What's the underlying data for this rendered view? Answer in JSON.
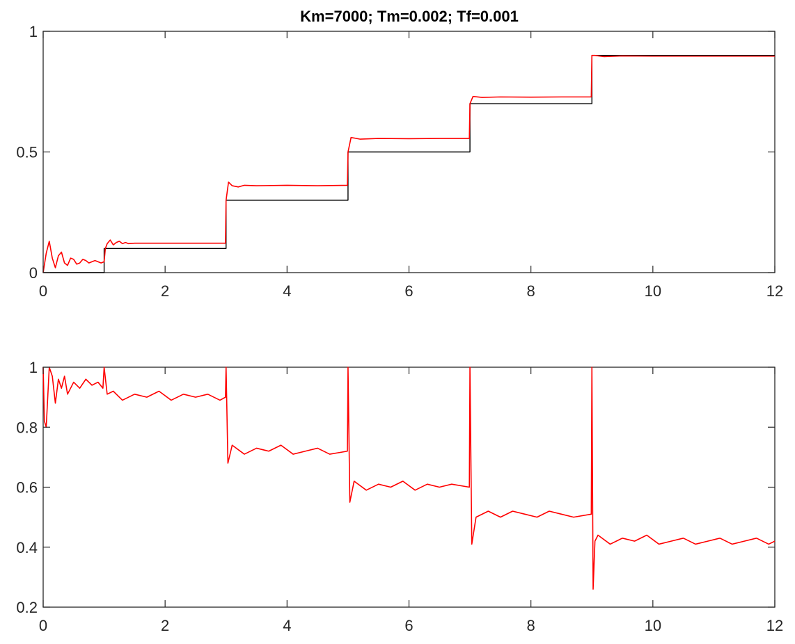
{
  "colors": {
    "reference": "#000000",
    "response": "#ff0000",
    "axes": "#262626",
    "background": "#ffffff"
  },
  "chart_data": [
    {
      "type": "line",
      "title": "Km=7000; Tm=0.002; Tf=0.001",
      "xlabel": "",
      "ylabel": "",
      "xlim": [
        0,
        12
      ],
      "ylim": [
        0,
        1
      ],
      "xticks": [
        0,
        2,
        4,
        6,
        8,
        10,
        12
      ],
      "yticks": [
        0,
        0.5,
        1
      ],
      "xtick_labels": [
        "0",
        "2",
        "4",
        "6",
        "8",
        "10",
        "12"
      ],
      "ytick_labels": [
        "0",
        "0.5",
        "1"
      ],
      "grid": false,
      "legend": false,
      "series": [
        {
          "color": "#000000",
          "step": true,
          "x": [
            0,
            1,
            1,
            3,
            3,
            5,
            5,
            7,
            7,
            9,
            9,
            12
          ],
          "y": [
            0,
            0,
            0.1,
            0.1,
            0.3,
            0.3,
            0.5,
            0.5,
            0.7,
            0.7,
            0.9,
            0.9
          ]
        },
        {
          "color": "#ff0000",
          "x": [
            0,
            0.05,
            0.1,
            0.15,
            0.2,
            0.25,
            0.3,
            0.35,
            0.4,
            0.45,
            0.5,
            0.55,
            0.6,
            0.65,
            0.7,
            0.75,
            0.8,
            0.85,
            0.9,
            0.95,
            1.0,
            1.02,
            1.05,
            1.1,
            1.15,
            1.2,
            1.25,
            1.3,
            1.35,
            1.4,
            1.5,
            2.0,
            2.5,
            2.99,
            3.0,
            3.04,
            3.1,
            3.2,
            3.3,
            3.5,
            4.0,
            4.5,
            4.99,
            5.0,
            5.05,
            5.2,
            5.5,
            6.0,
            6.5,
            6.99,
            7.0,
            7.05,
            7.2,
            7.5,
            8.0,
            8.5,
            8.99,
            9.0,
            9.05,
            9.2,
            9.5,
            10.0,
            11.0,
            12.0
          ],
          "y": [
            0,
            0.08,
            0.13,
            0.06,
            0.02,
            0.07,
            0.085,
            0.04,
            0.03,
            0.06,
            0.055,
            0.035,
            0.04,
            0.055,
            0.05,
            0.04,
            0.045,
            0.05,
            0.045,
            0.04,
            0.045,
            0.1,
            0.12,
            0.135,
            0.115,
            0.125,
            0.13,
            0.12,
            0.125,
            0.12,
            0.122,
            0.122,
            0.122,
            0.122,
            0.3,
            0.375,
            0.36,
            0.355,
            0.362,
            0.36,
            0.362,
            0.36,
            0.362,
            0.5,
            0.56,
            0.553,
            0.556,
            0.555,
            0.556,
            0.556,
            0.7,
            0.73,
            0.726,
            0.728,
            0.727,
            0.728,
            0.728,
            0.9,
            0.9,
            0.895,
            0.898,
            0.897,
            0.897,
            0.897
          ]
        }
      ]
    },
    {
      "type": "line",
      "title": "",
      "xlabel": "",
      "ylabel": "",
      "xlim": [
        0,
        12
      ],
      "ylim": [
        0.2,
        1
      ],
      "xticks": [
        0,
        2,
        4,
        6,
        8,
        10,
        12
      ],
      "yticks": [
        0.2,
        0.4,
        0.6,
        0.8,
        1
      ],
      "xtick_labels": [
        "0",
        "2",
        "4",
        "6",
        "8",
        "10",
        "12"
      ],
      "ytick_labels": [
        "0.2",
        "0.4",
        "0.6",
        "0.8",
        "1"
      ],
      "grid": false,
      "legend": false,
      "series": [
        {
          "color": "#ff0000",
          "x": [
            0,
            0.02,
            0.05,
            0.08,
            0.1,
            0.15,
            0.2,
            0.25,
            0.3,
            0.35,
            0.4,
            0.5,
            0.6,
            0.7,
            0.8,
            0.9,
            0.98,
            1.0,
            1.05,
            1.15,
            1.3,
            1.5,
            1.7,
            1.9,
            2.1,
            2.3,
            2.5,
            2.7,
            2.9,
            2.99,
            3.0,
            3.03,
            3.1,
            3.3,
            3.5,
            3.7,
            3.9,
            4.1,
            4.3,
            4.5,
            4.7,
            4.99,
            5.0,
            5.03,
            5.1,
            5.3,
            5.5,
            5.7,
            5.9,
            6.1,
            6.3,
            6.5,
            6.7,
            6.99,
            7.0,
            7.03,
            7.1,
            7.3,
            7.5,
            7.7,
            7.9,
            8.1,
            8.3,
            8.5,
            8.7,
            8.99,
            9.0,
            9.02,
            9.05,
            9.1,
            9.3,
            9.5,
            9.7,
            9.9,
            10.1,
            10.3,
            10.5,
            10.7,
            10.9,
            11.1,
            11.3,
            11.5,
            11.7,
            11.9,
            12.0
          ],
          "y": [
            1.0,
            0.82,
            0.8,
            0.92,
            1.0,
            0.97,
            0.88,
            0.96,
            0.93,
            0.97,
            0.91,
            0.95,
            0.93,
            0.96,
            0.94,
            0.95,
            0.93,
            1.0,
            0.91,
            0.92,
            0.89,
            0.91,
            0.9,
            0.92,
            0.89,
            0.91,
            0.9,
            0.91,
            0.89,
            0.9,
            1.0,
            0.68,
            0.74,
            0.71,
            0.73,
            0.72,
            0.74,
            0.71,
            0.72,
            0.73,
            0.71,
            0.72,
            1.0,
            0.55,
            0.62,
            0.59,
            0.61,
            0.6,
            0.62,
            0.59,
            0.61,
            0.6,
            0.61,
            0.6,
            1.0,
            0.41,
            0.5,
            0.52,
            0.5,
            0.52,
            0.51,
            0.5,
            0.52,
            0.51,
            0.5,
            0.51,
            1.0,
            0.26,
            0.42,
            0.44,
            0.41,
            0.43,
            0.42,
            0.44,
            0.41,
            0.42,
            0.43,
            0.41,
            0.42,
            0.43,
            0.41,
            0.42,
            0.43,
            0.41,
            0.42
          ]
        }
      ]
    }
  ]
}
